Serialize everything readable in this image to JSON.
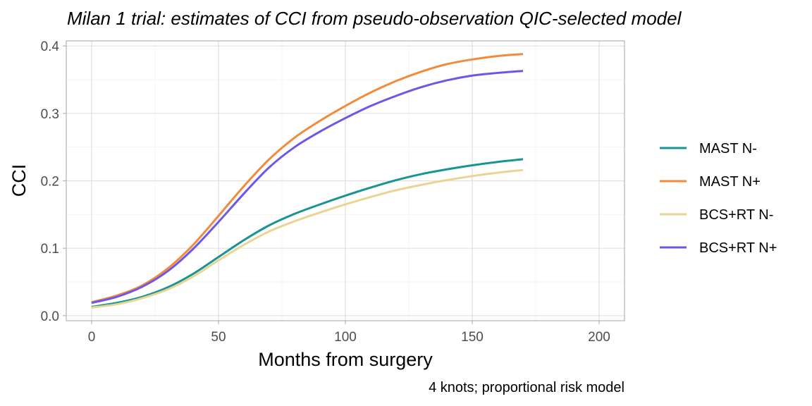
{
  "chart_data": {
    "type": "line",
    "title": "Milan 1 trial: estimates of CCI from pseudo-observation QIC-selected model",
    "xlabel": "Months from surgery",
    "ylabel": "CCI",
    "caption": "4 knots; proportional risk model",
    "xlim": [
      -10,
      210
    ],
    "ylim": [
      -0.0075,
      0.4075
    ],
    "x_ticks": [
      0,
      50,
      100,
      150,
      200
    ],
    "x_tick_labels": [
      "0",
      "50",
      "100",
      "150",
      "200"
    ],
    "y_ticks": [
      0.0,
      0.1,
      0.2,
      0.3,
      0.4
    ],
    "y_tick_labels": [
      "0.0",
      "0.1",
      "0.2",
      "0.3",
      "0.4"
    ],
    "grid": true,
    "legend_position": "right",
    "series": [
      {
        "name": "MAST N-",
        "color": "#1a9393",
        "x": [
          0,
          10,
          20,
          30,
          40,
          50,
          60,
          70,
          80,
          90,
          100,
          110,
          120,
          130,
          140,
          150,
          160,
          170
        ],
        "y": [
          0.013,
          0.019,
          0.028,
          0.042,
          0.062,
          0.087,
          0.112,
          0.134,
          0.151,
          0.165,
          0.178,
          0.19,
          0.201,
          0.21,
          0.217,
          0.223,
          0.228,
          0.232
        ]
      },
      {
        "name": "MAST N+",
        "color": "#f28a3b",
        "x": [
          0,
          10,
          20,
          30,
          40,
          50,
          60,
          70,
          80,
          90,
          100,
          110,
          120,
          130,
          140,
          150,
          160,
          170
        ],
        "y": [
          0.02,
          0.03,
          0.045,
          0.07,
          0.105,
          0.148,
          0.192,
          0.232,
          0.264,
          0.289,
          0.311,
          0.331,
          0.348,
          0.362,
          0.373,
          0.38,
          0.385,
          0.388
        ]
      },
      {
        "name": "BCS+RT N-",
        "color": "#e8d595",
        "x": [
          0,
          10,
          20,
          30,
          40,
          50,
          60,
          70,
          80,
          90,
          100,
          110,
          120,
          130,
          140,
          150,
          160,
          170
        ],
        "y": [
          0.012,
          0.017,
          0.026,
          0.039,
          0.058,
          0.082,
          0.105,
          0.125,
          0.14,
          0.153,
          0.165,
          0.176,
          0.186,
          0.194,
          0.201,
          0.207,
          0.212,
          0.216
        ]
      },
      {
        "name": "BCS+RT N+",
        "color": "#6e57e6",
        "x": [
          0,
          10,
          20,
          30,
          40,
          50,
          60,
          70,
          80,
          90,
          100,
          110,
          120,
          130,
          140,
          150,
          160,
          170
        ],
        "y": [
          0.019,
          0.028,
          0.043,
          0.066,
          0.099,
          0.139,
          0.181,
          0.22,
          0.25,
          0.273,
          0.293,
          0.311,
          0.326,
          0.339,
          0.349,
          0.356,
          0.36,
          0.363
        ]
      }
    ]
  }
}
